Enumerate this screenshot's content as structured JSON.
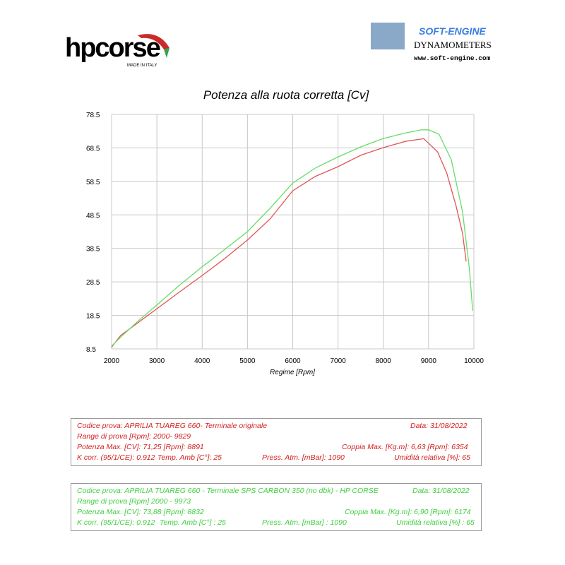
{
  "header": {
    "brand": "hpcorse",
    "brand_note": "MADE IN ITALY",
    "dyno_brand": "SOFT-ENGINE",
    "dyno_title": "DYNAMOMETERS",
    "dyno_url": "www.soft-engine.com"
  },
  "chart_data": {
    "type": "line",
    "title": "Potenza alla ruota corretta [Cv]",
    "x_label": "Regime [Rpm]",
    "xlim": [
      2000,
      10000
    ],
    "xticks": [
      2000,
      3000,
      4000,
      5000,
      6000,
      7000,
      8000,
      9000,
      10000
    ],
    "ylim": [
      8.5,
      78.5
    ],
    "yticks": [
      8.5,
      18.5,
      28.5,
      38.5,
      48.5,
      58.5,
      68.5,
      78.5
    ],
    "grid": true,
    "series": [
      {
        "color": "#e05555",
        "x": [
          2000,
          2200,
          2600,
          3000,
          3500,
          4000,
          4500,
          5000,
          5500,
          6000,
          6500,
          7000,
          7500,
          8000,
          8500,
          8891,
          9000,
          9200,
          9400,
          9600,
          9750,
          9829
        ],
        "values": [
          9,
          12.5,
          16.5,
          20.5,
          25.5,
          30.4,
          35.5,
          41,
          47.3,
          55.7,
          60,
          62.9,
          66.3,
          68.6,
          70.5,
          71.25,
          69.9,
          67.3,
          61,
          51.5,
          43,
          34.6
        ]
      },
      {
        "color": "#66dd66",
        "x": [
          2000,
          2200,
          2600,
          3000,
          3500,
          4000,
          4500,
          5000,
          5500,
          6000,
          6500,
          7000,
          7500,
          8000,
          8500,
          8832,
          9000,
          9230,
          9500,
          9750,
          9900,
          9973
        ],
        "values": [
          9.3,
          12,
          17,
          21.6,
          27.5,
          33,
          38.2,
          43.5,
          50.5,
          58,
          62.5,
          65.8,
          68.8,
          71.3,
          73,
          73.88,
          73.9,
          72.6,
          65,
          49.4,
          32.5,
          19.9
        ]
      }
    ]
  },
  "info": [
    {
      "row1": [
        "Codice prova: APRILIA TUAREG 660- Terminale originale",
        "Data: 31/08/2022"
      ],
      "row2": [
        "Range di prova [Rpm]: 2000- 9829"
      ],
      "row3": [
        "Potenza Max. [CV]: 71,25 [Rpm]: 8891",
        "Coppia Max. [Kg.m]: 6,63 [Rpm]: 6354"
      ],
      "row4": [
        "K corr. (95/1/CE): 0.912",
        "Temp. Amb [C°]: 25",
        "Press. Atm. [mBar]: 1090",
        "Umidità relativa [%]: 65"
      ]
    },
    {
      "row1": [
        "Codice prova: APRILIA TUAREG 660 - Terminale SPS CARBON 350  (no dbk) - HP CORSE",
        "Data: 31/08/2022"
      ],
      "row2": [
        "Range di prova [Rpm] 2000 - 9973"
      ],
      "row3": [
        "Potenza Max. [CV]: 73,88  [Rpm]: 8832",
        "Coppia Max. [Kg.m]: 6,90 [Rpm]: 6174"
      ],
      "row4": [
        "K corr. (95/1/CE): 0.912",
        "Temp. Amb [C°] : 25",
        "Press. Atm. [mBar] : 1090",
        "Umidità relativa [%] : 65"
      ]
    }
  ]
}
